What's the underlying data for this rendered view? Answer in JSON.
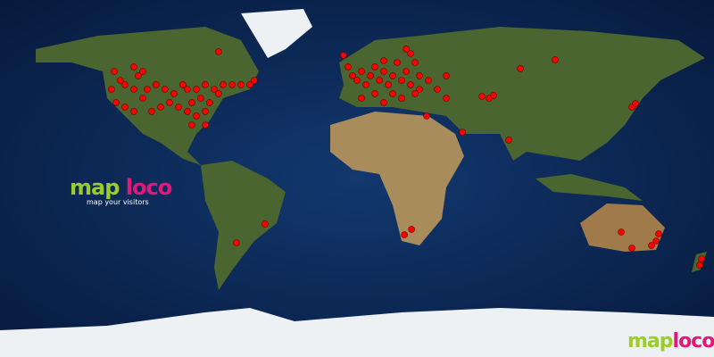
{
  "map": {
    "projection": "equirectangular",
    "colors": {
      "ocean": "#0d2a5c",
      "deep_ocean": "#071a3d",
      "land": "#4f6b2e",
      "desert": "#b59a6a",
      "ice": "#f2f4f7",
      "marker": "#ff0000"
    },
    "markers": [
      [
        -122.4,
        54
      ],
      [
        -119.3,
        49.5
      ],
      [
        -117,
        47.3
      ],
      [
        -112.5,
        56.3
      ],
      [
        -110.3,
        51.8
      ],
      [
        -108,
        54
      ],
      [
        -123.8,
        45
      ],
      [
        -121.5,
        38.3
      ],
      [
        -117,
        36
      ],
      [
        -112.5,
        33.8
      ],
      [
        -105.8,
        45
      ],
      [
        -101.3,
        47.3
      ],
      [
        -96.8,
        45
      ],
      [
        -92.3,
        42.8
      ],
      [
        -87.8,
        47.3
      ],
      [
        -85.5,
        45
      ],
      [
        -81,
        45
      ],
      [
        -76.5,
        47.3
      ],
      [
        -72,
        45
      ],
      [
        -67.5,
        47.3
      ],
      [
        -63,
        47.3
      ],
      [
        -58.5,
        47.3
      ],
      [
        -54,
        47.3
      ],
      [
        -83.3,
        38.3
      ],
      [
        -78.8,
        40.5
      ],
      [
        -74.3,
        38.3
      ],
      [
        -69.8,
        42.8
      ],
      [
        -90,
        36
      ],
      [
        -85.5,
        33.8
      ],
      [
        -81,
        31.5
      ],
      [
        -76.5,
        33.8
      ],
      [
        -94.5,
        38.3
      ],
      [
        -99,
        36
      ],
      [
        -103.5,
        33.8
      ],
      [
        -108,
        40.5
      ],
      [
        -112.5,
        45
      ],
      [
        -69.8,
        63.9
      ],
      [
        -51.8,
        49.5
      ],
      [
        -76.5,
        27
      ],
      [
        -83.3,
        27
      ],
      [
        -6.8,
        62.1
      ],
      [
        -4.5,
        56.3
      ],
      [
        -2.3,
        51.8
      ],
      [
        0,
        49.5
      ],
      [
        2.3,
        54
      ],
      [
        4.5,
        47.3
      ],
      [
        6.8,
        51.8
      ],
      [
        9,
        56.3
      ],
      [
        11.3,
        49.5
      ],
      [
        13.5,
        54
      ],
      [
        15.8,
        47.3
      ],
      [
        18,
        51.8
      ],
      [
        20.3,
        58.5
      ],
      [
        22.5,
        49.5
      ],
      [
        24.8,
        54
      ],
      [
        27,
        63
      ],
      [
        29.3,
        58.5
      ],
      [
        27,
        47.3
      ],
      [
        31.5,
        51.8
      ],
      [
        36,
        49.5
      ],
      [
        40.5,
        45
      ],
      [
        45,
        51.8
      ],
      [
        31.5,
        45
      ],
      [
        18,
        42.8
      ],
      [
        9,
        42.8
      ],
      [
        2.3,
        40.5
      ],
      [
        13.5,
        38.3
      ],
      [
        22.5,
        40.5
      ],
      [
        29.3,
        42.8
      ],
      [
        35.1,
        31.5
      ],
      [
        45,
        40.5
      ],
      [
        13.5,
        59.4
      ],
      [
        24.8,
        65.3
      ],
      [
        63,
        41.4
      ],
      [
        66.6,
        40.5
      ],
      [
        68.9,
        41.9
      ],
      [
        82.4,
        55.4
      ],
      [
        99.9,
        59.9
      ],
      [
        53.1,
        23.4
      ],
      [
        76.5,
        19.4
      ],
      [
        138.6,
        36
      ],
      [
        140.4,
        37.8
      ],
      [
        23.9,
        -28.4
      ],
      [
        27.5,
        -25.6
      ],
      [
        -46.4,
        -23
      ],
      [
        -60.8,
        -32.4
      ],
      [
        133.2,
        -27
      ],
      [
        138.6,
        -35.1
      ],
      [
        150.8,
        -31.5
      ],
      [
        152.1,
        -27.9
      ],
      [
        148.5,
        -33.8
      ],
      [
        173.7,
        -40.5
      ],
      [
        172.8,
        -43.7
      ]
    ]
  },
  "logo": {
    "part1": "map",
    "part2": "loco",
    "tagline": "map your visitors"
  },
  "watermark": {
    "part1": "map",
    "part2": "loco"
  }
}
